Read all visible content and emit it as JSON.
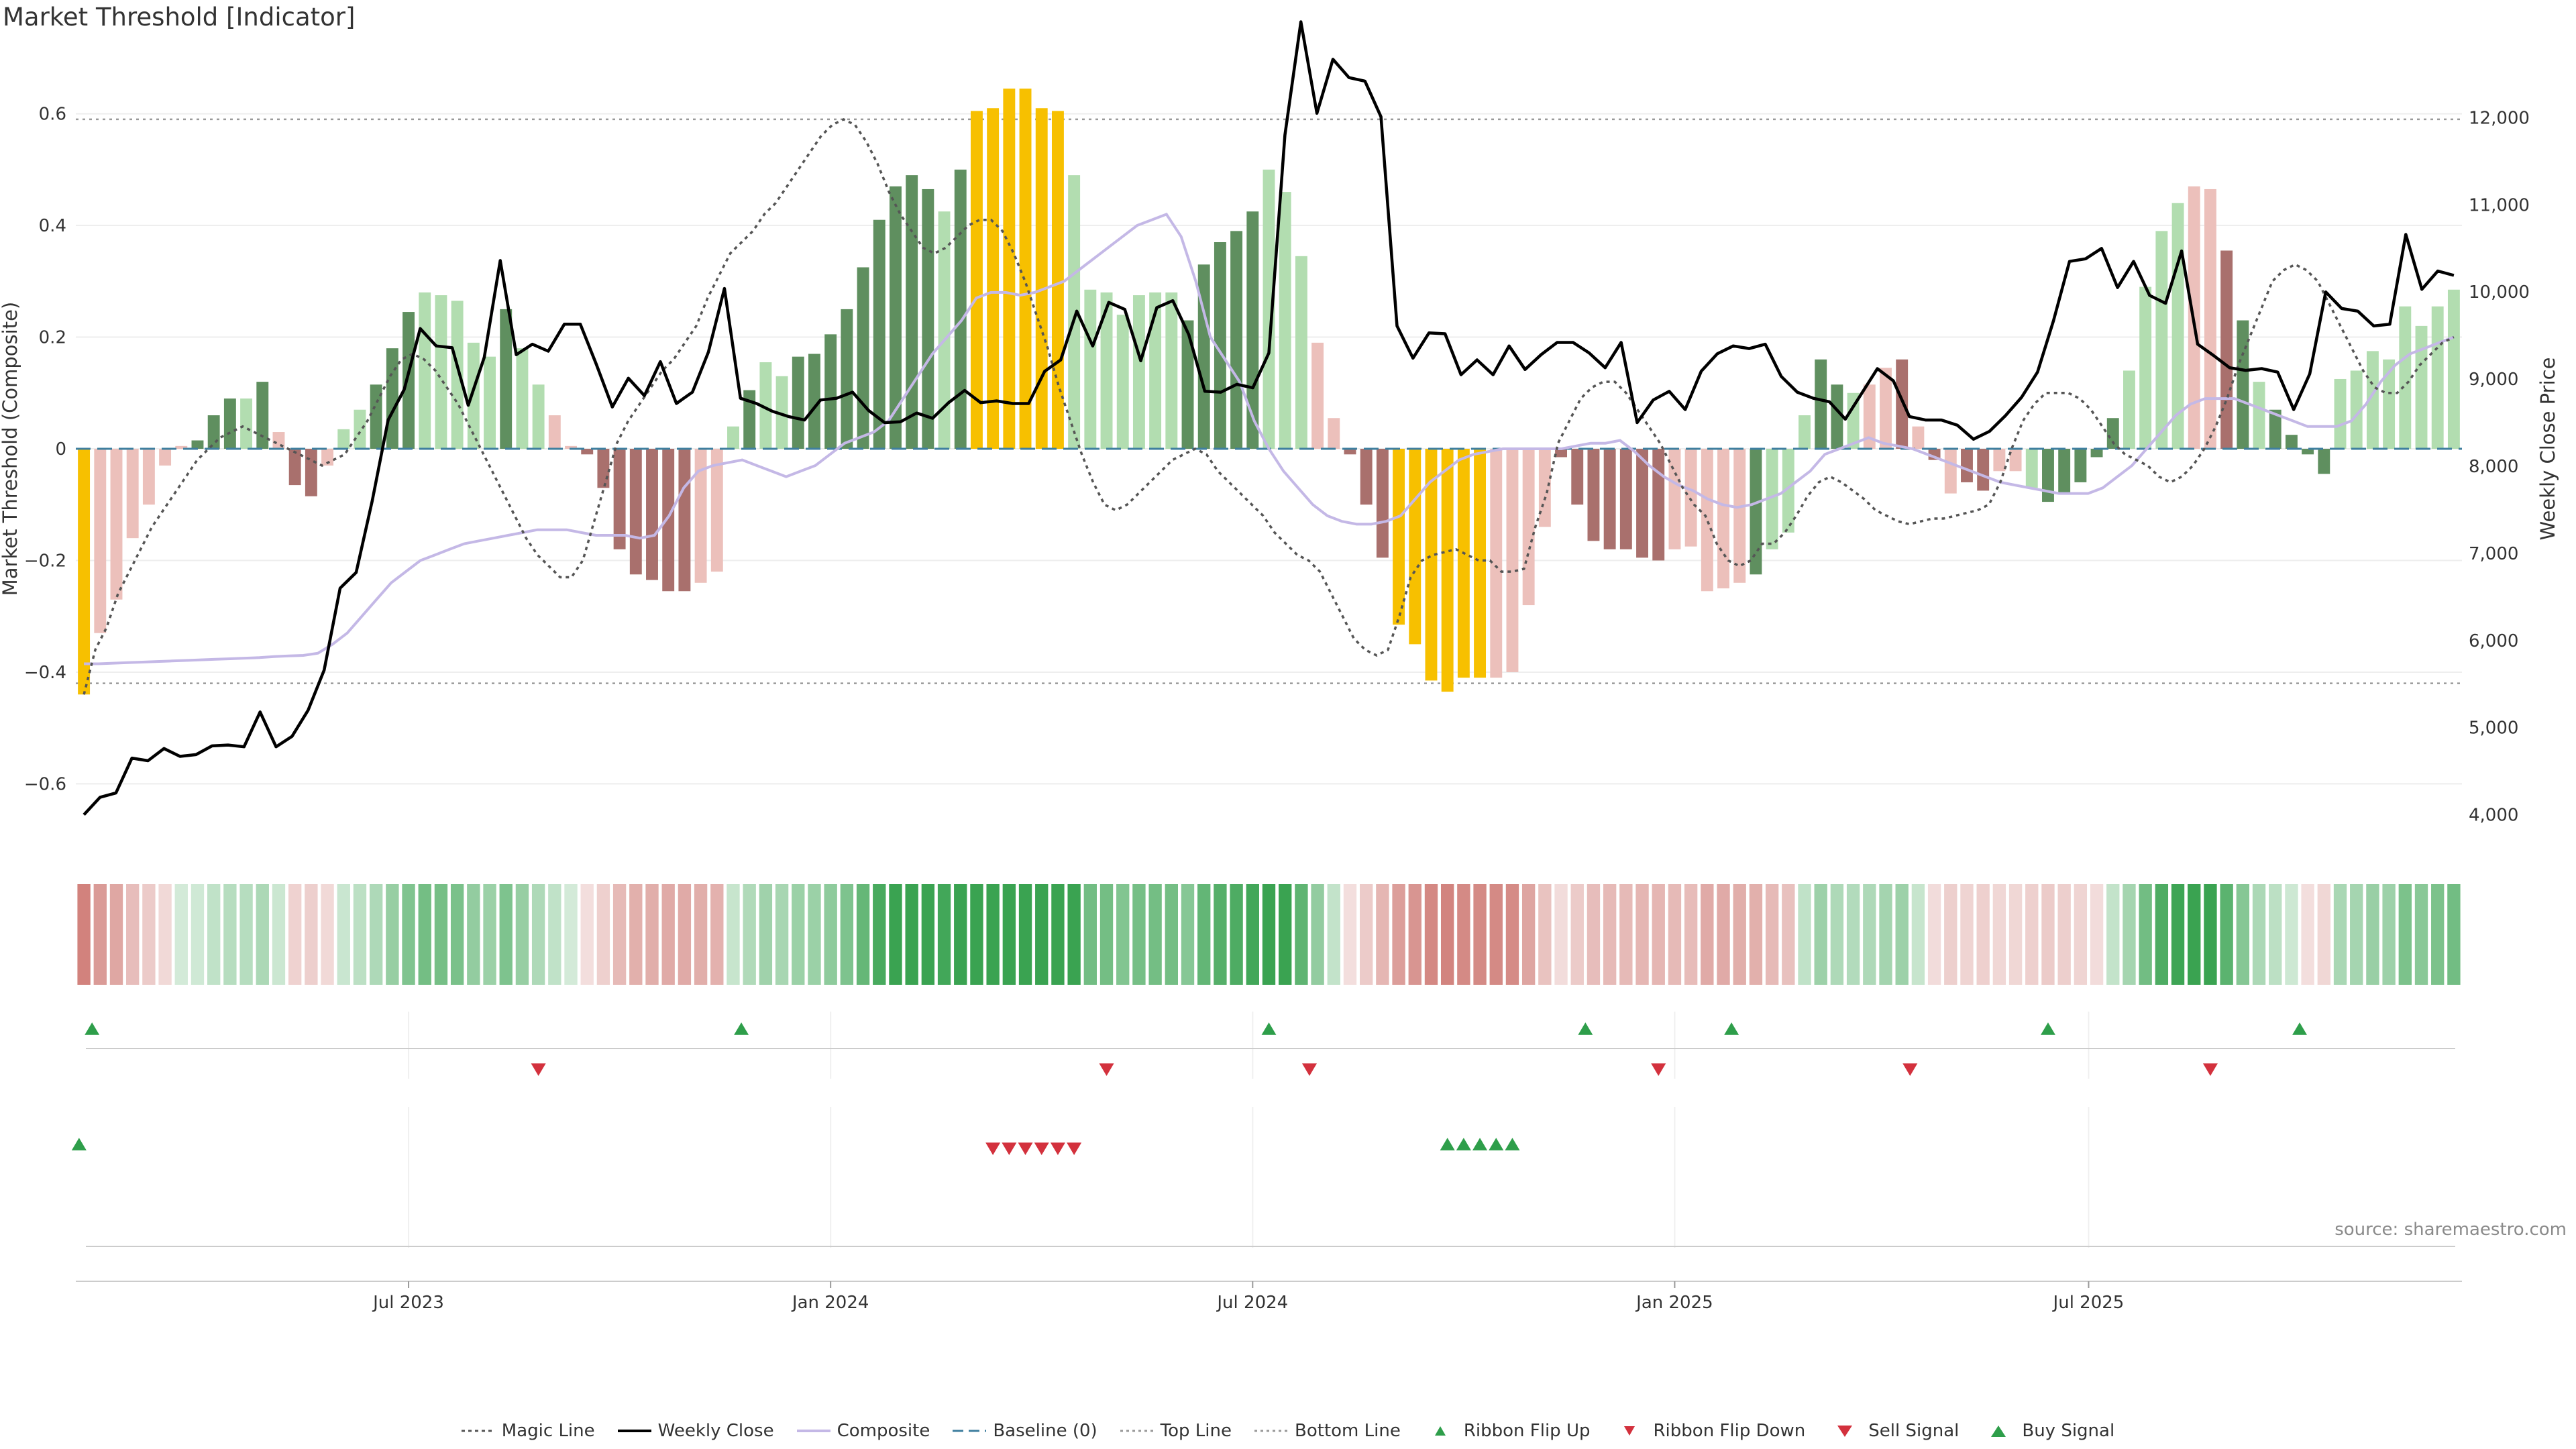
{
  "chart_data": {
    "type": "bar",
    "title": "Market Threshold [Indicator]",
    "source": "source: sharemaestro.com",
    "left_axis": {
      "label": "Market Threshold (Composite)",
      "ticks": [
        "0.6",
        "0.4",
        "0.2",
        "0",
        "−0.2",
        "−0.4",
        "−0.6"
      ],
      "tick_values": [
        0.6,
        0.4,
        0.2,
        0,
        -0.2,
        -0.4,
        -0.6
      ],
      "range": [
        -0.71,
        0.71
      ]
    },
    "right_axis": {
      "label": "Weekly Close Price",
      "ticks": [
        "12,000",
        "11,000",
        "10,000",
        "9,000",
        "8,000",
        "7,000",
        "6,000",
        "5,000",
        "4,000"
      ],
      "tick_values": [
        12000,
        11000,
        10000,
        9000,
        8000,
        7000,
        6000,
        5000,
        4000
      ],
      "range": [
        3650,
        12750
      ]
    },
    "x_axis": {
      "ticks": [
        "Jul 2023",
        "Jan 2024",
        "Jul 2024",
        "Jan 2025",
        "Jul 2025"
      ],
      "tick_weeks": [
        20.5,
        46.5,
        72.5,
        98.5,
        124
      ]
    },
    "thresholds": {
      "top_line": 0.59,
      "bottom_line": -0.42,
      "baseline": 0
    },
    "composite_bars": [
      -0.44,
      -0.33,
      -0.27,
      -0.16,
      -0.1,
      -0.03,
      0.005,
      0.015,
      0.06,
      0.09,
      0.09,
      0.12,
      0.03,
      -0.065,
      -0.085,
      -0.03,
      0.035,
      0.07,
      0.115,
      0.18,
      0.245,
      0.28,
      0.275,
      0.265,
      0.19,
      0.165,
      0.25,
      0.18,
      0.115,
      0.06,
      0.005,
      -0.01,
      -0.07,
      -0.18,
      -0.225,
      -0.235,
      -0.255,
      -0.255,
      -0.24,
      -0.22,
      0.04,
      0.105,
      0.155,
      0.13,
      0.165,
      0.17,
      0.205,
      0.25,
      0.325,
      0.41,
      0.47,
      0.49,
      0.465,
      0.425,
      0.5,
      0.605,
      0.61,
      0.645,
      0.645,
      0.61,
      0.605,
      0.49,
      0.285,
      0.28,
      0.24,
      0.275,
      0.28,
      0.28,
      0.23,
      0.33,
      0.37,
      0.39,
      0.425,
      0.5,
      0.46,
      0.345,
      0.19,
      0.055,
      -0.01,
      -0.1,
      -0.195,
      -0.315,
      -0.35,
      -0.415,
      -0.435,
      -0.41,
      -0.41,
      -0.41,
      -0.4,
      -0.28,
      -0.14,
      -0.015,
      -0.1,
      -0.165,
      -0.18,
      -0.18,
      -0.195,
      -0.2,
      -0.18,
      -0.175,
      -0.255,
      -0.25,
      -0.24,
      -0.225,
      -0.18,
      -0.15,
      0.06,
      0.16,
      0.115,
      0.1,
      0.115,
      0.145,
      0.16,
      0.04,
      -0.02,
      -0.08,
      -0.06,
      -0.075,
      -0.04,
      -0.04,
      -0.07,
      -0.095,
      -0.08,
      -0.06,
      -0.015,
      0.055,
      0.14,
      0.29,
      0.39,
      0.44,
      0.47,
      0.465,
      0.355,
      0.23,
      0.12,
      0.07,
      0.025,
      -0.01,
      -0.045,
      0.125,
      0.14,
      0.175,
      0.16,
      0.255,
      0.22,
      0.255,
      0.285
    ],
    "bar_states": "YPPPPPPGGGLGPRRPLLGGGLLLLLGLLPPRRRRRRRPPLGLLGGGGGGGGGLGYYYYYYLLLLLLLGGGGGLLLPPRRRYYYYYYPPPPRRRRRRRPPPPPGLLLGGLPPRPRPRRPPLGGGGGLLLLPPRGLGGGG",
    "weekly_close": [
      4000,
      4200,
      4250,
      4650,
      4620,
      4760,
      4670,
      4690,
      4790,
      4800,
      4780,
      5180,
      4780,
      4900,
      5200,
      5660,
      6600,
      6780,
      7600,
      8530,
      8880,
      9580,
      9380,
      9360,
      8700,
      9250,
      10360,
      9280,
      9400,
      9320,
      9630,
      9630,
      9170,
      8680,
      9010,
      8810,
      9200,
      8720,
      8850,
      9310,
      10040,
      8780,
      8720,
      8630,
      8570,
      8530,
      8760,
      8780,
      8850,
      8640,
      8500,
      8510,
      8610,
      8550,
      8730,
      8870,
      8730,
      8750,
      8720,
      8720,
      9090,
      9220,
      9780,
      9380,
      9880,
      9800,
      9210,
      9820,
      9900,
      9510,
      8860,
      8850,
      8940,
      8900,
      9300,
      11800,
      13100,
      12050,
      12670,
      12460,
      12420,
      12010,
      9610,
      9240,
      9530,
      9520,
      9050,
      9220,
      9050,
      9380,
      9110,
      9280,
      9420,
      9420,
      9300,
      9130,
      9420,
      8500,
      8760,
      8860,
      8650,
      9090,
      9290,
      9380,
      9350,
      9400,
      9030,
      8850,
      8780,
      8740,
      8540,
      8830,
      9120,
      8980,
      8570,
      8530,
      8530,
      8470,
      8310,
      8400,
      8580,
      8790,
      9080,
      9670,
      10350,
      10380,
      10500,
      10050,
      10350,
      9960,
      9870,
      10470,
      9400,
      9270,
      9130,
      9100,
      9120,
      9080,
      8650,
      9060,
      10000,
      9810,
      9780,
      9610,
      9630,
      10660,
      10030,
      10240,
      10190
    ],
    "magic_line": [
      -0.44,
      -0.36,
      -0.32,
      -0.26,
      -0.22,
      -0.18,
      -0.14,
      -0.11,
      -0.08,
      -0.05,
      -0.02,
      0.0,
      0.02,
      0.03,
      0.04,
      0.03,
      0.02,
      0.01,
      0.0,
      -0.01,
      -0.02,
      -0.03,
      -0.02,
      -0.01,
      0.02,
      0.05,
      0.09,
      0.13,
      0.16,
      0.17,
      0.16,
      0.14,
      0.11,
      0.08,
      0.04,
      0.0,
      -0.04,
      -0.08,
      -0.12,
      -0.16,
      -0.19,
      -0.21,
      -0.23,
      -0.23,
      -0.2,
      -0.13,
      -0.06,
      0.01,
      0.05,
      0.08,
      0.11,
      0.14,
      0.16,
      0.19,
      0.22,
      0.27,
      0.31,
      0.35,
      0.37,
      0.39,
      0.42,
      0.44,
      0.47,
      0.5,
      0.53,
      0.56,
      0.58,
      0.59,
      0.58,
      0.55,
      0.51,
      0.46,
      0.42,
      0.39,
      0.36,
      0.35,
      0.36,
      0.38,
      0.4,
      0.41,
      0.41,
      0.39,
      0.35,
      0.3,
      0.24,
      0.18,
      0.11,
      0.05,
      -0.01,
      -0.06,
      -0.1,
      -0.11,
      -0.1,
      -0.08,
      -0.06,
      -0.04,
      -0.02,
      -0.01,
      0.0,
      -0.01,
      -0.04,
      -0.06,
      -0.08,
      -0.1,
      -0.12,
      -0.15,
      -0.17,
      -0.19,
      -0.2,
      -0.22,
      -0.26,
      -0.3,
      -0.34,
      -0.36,
      -0.37,
      -0.36,
      -0.3,
      -0.23,
      -0.2,
      -0.19,
      -0.185,
      -0.18,
      -0.19,
      -0.2,
      -0.2,
      -0.22,
      -0.22,
      -0.215,
      -0.14,
      -0.08,
      0.01,
      0.05,
      0.09,
      0.11,
      0.12,
      0.12,
      0.1,
      0.07,
      0.04,
      0.01,
      -0.03,
      -0.07,
      -0.1,
      -0.12,
      -0.17,
      -0.2,
      -0.21,
      -0.2,
      -0.17,
      -0.17,
      -0.15,
      -0.12,
      -0.085,
      -0.06,
      -0.05,
      -0.06,
      -0.075,
      -0.09,
      -0.11,
      -0.12,
      -0.13,
      -0.135,
      -0.13,
      -0.125,
      -0.125,
      -0.12,
      -0.115,
      -0.11,
      -0.1,
      -0.06,
      0.0,
      0.05,
      0.08,
      0.1,
      0.1,
      0.1,
      0.09,
      0.07,
      0.04,
      0.01,
      -0.01,
      -0.02,
      -0.03,
      -0.05,
      -0.06,
      -0.05,
      -0.03,
      0.0,
      0.04,
      0.09,
      0.15,
      0.2,
      0.25,
      0.3,
      0.32,
      0.33,
      0.32,
      0.3,
      0.26,
      0.22,
      0.18,
      0.14,
      0.11,
      0.1,
      0.1,
      0.12,
      0.15,
      0.17,
      0.19,
      0.2
    ],
    "composite_line": [
      -0.385,
      -0.385,
      -0.384,
      -0.383,
      -0.382,
      -0.381,
      -0.38,
      -0.379,
      -0.378,
      -0.377,
      -0.376,
      -0.375,
      -0.374,
      -0.372,
      -0.371,
      -0.37,
      -0.366,
      -0.35,
      -0.33,
      -0.3,
      -0.27,
      -0.24,
      -0.22,
      -0.2,
      -0.19,
      -0.18,
      -0.17,
      -0.165,
      -0.16,
      -0.155,
      -0.15,
      -0.145,
      -0.145,
      -0.145,
      -0.15,
      -0.155,
      -0.155,
      -0.155,
      -0.16,
      -0.155,
      -0.12,
      -0.07,
      -0.04,
      -0.03,
      -0.025,
      -0.02,
      -0.03,
      -0.04,
      -0.05,
      -0.04,
      -0.03,
      -0.01,
      0.01,
      0.02,
      0.03,
      0.05,
      0.09,
      0.13,
      0.17,
      0.2,
      0.23,
      0.27,
      0.28,
      0.28,
      0.275,
      0.28,
      0.29,
      0.3,
      0.32,
      0.34,
      0.36,
      0.38,
      0.4,
      0.41,
      0.42,
      0.38,
      0.3,
      0.2,
      0.16,
      0.12,
      0.05,
      0.0,
      -0.04,
      -0.07,
      -0.1,
      -0.12,
      -0.13,
      -0.135,
      -0.135,
      -0.13,
      -0.12,
      -0.09,
      -0.06,
      -0.04,
      -0.02,
      -0.01,
      -0.005,
      0.0,
      0.0,
      0.0,
      0.0,
      0.0,
      0.005,
      0.01,
      0.01,
      0.015,
      -0.005,
      -0.03,
      -0.05,
      -0.065,
      -0.075,
      -0.09,
      -0.1,
      -0.105,
      -0.1,
      -0.09,
      -0.08,
      -0.06,
      -0.04,
      -0.01,
      0.0,
      0.01,
      0.02,
      0.01,
      0.005,
      0.0,
      -0.01,
      -0.02,
      -0.03,
      -0.04,
      -0.05,
      -0.06,
      -0.065,
      -0.07,
      -0.075,
      -0.08,
      -0.08,
      -0.08,
      -0.07,
      -0.05,
      -0.03,
      0.0,
      0.03,
      0.06,
      0.08,
      0.09,
      0.09,
      0.09,
      0.08,
      0.07,
      0.06,
      0.05,
      0.04,
      0.04,
      0.04,
      0.05,
      0.08,
      0.12,
      0.15,
      0.17,
      0.18,
      0.19,
      0.2
    ],
    "ribbon_flip_up_weeks": [
      1,
      41,
      73.5,
      93,
      102,
      121.5,
      137
    ],
    "ribbon_flip_down_weeks": [
      28.5,
      63.5,
      76,
      97.5,
      113,
      131.5
    ],
    "sell_signal_weeks": [
      56.5,
      57.5,
      58.5,
      59.5,
      60.5,
      61.5
    ],
    "buy_signal_weeks": [
      84.5,
      85.5,
      86.5,
      87.5,
      88.5
    ],
    "buy_signal_early_week": 0.2,
    "legend": [
      "Magic Line",
      "Weekly Close",
      "Composite",
      "Baseline (0)",
      "Top Line",
      "Bottom Line",
      "Ribbon Flip Up",
      "Ribbon Flip Down",
      "Sell Signal",
      "Buy Signal"
    ],
    "colors": {
      "bar_green": "#5f8f5f",
      "bar_light_green": "#b2ddb0",
      "bar_pink": "#ecc0bb",
      "bar_red": "#a9706d",
      "bar_yellow": "#f7c000",
      "weekly_close": "#000000",
      "magic_line": "#555555",
      "composite_line": "#c4b8e6",
      "baseline": "#3f7f9f",
      "threshold": "#999999",
      "up_marker": "#2e9e4a",
      "down_marker": "#d3313d"
    }
  }
}
